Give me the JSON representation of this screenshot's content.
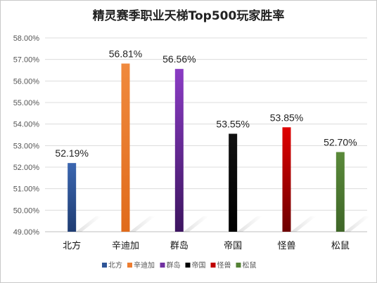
{
  "chart_data": {
    "type": "bar",
    "title": "精灵赛季职业天梯Top500玩家胜率",
    "categories": [
      "北方",
      "辛迪加",
      "群岛",
      "帝国",
      "怪兽",
      "松鼠"
    ],
    "values": [
      52.19,
      56.81,
      56.56,
      53.55,
      53.85,
      52.7
    ],
    "data_labels": [
      "52.19%",
      "56.81%",
      "56.56%",
      "53.55%",
      "53.85%",
      "52.70%"
    ],
    "ylim": [
      49.0,
      58.0
    ],
    "y_ticks": [
      "49.00%",
      "50.00%",
      "51.00%",
      "52.00%",
      "53.00%",
      "54.00%",
      "55.00%",
      "56.00%",
      "57.00%",
      "58.00%"
    ],
    "colors": [
      "#2f5597",
      "#ed7d31",
      "#7030a0",
      "#000000",
      "#c00000",
      "#548235"
    ],
    "grid": true,
    "legend_position": "bottom",
    "xlabel": "",
    "ylabel": ""
  }
}
